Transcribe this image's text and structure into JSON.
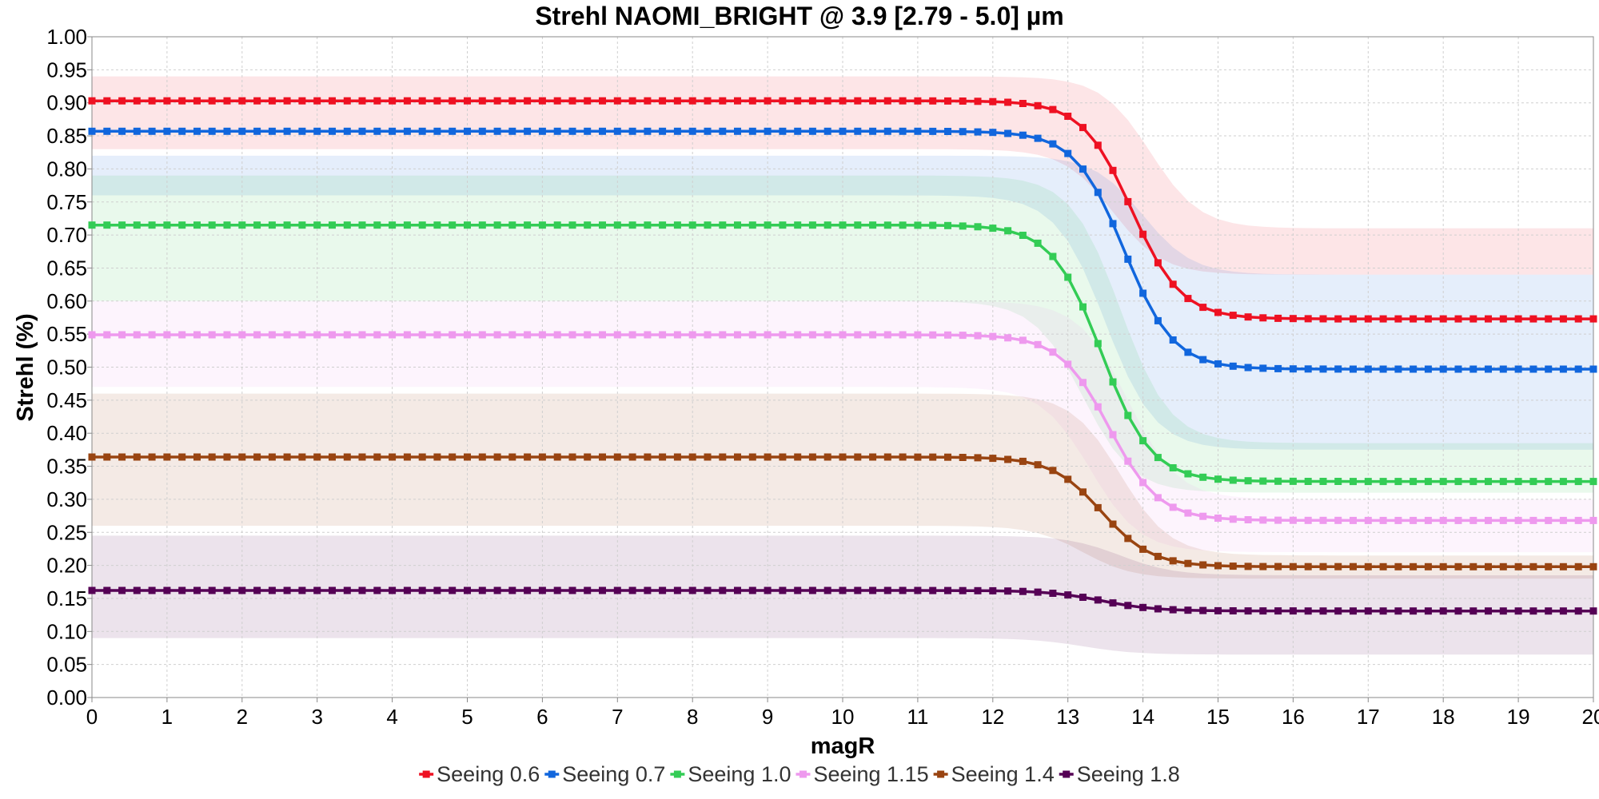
{
  "chart_data": {
    "type": "line",
    "title": "Strehl NAOMI_BRIGHT @ 3.9 [2.79 - 5.0] µm",
    "xlabel": "magR",
    "ylabel": "Strehl (%)",
    "xlim": [
      0,
      20
    ],
    "ylim": [
      0,
      1
    ],
    "x_ticks": [
      "0",
      "1",
      "2",
      "3",
      "4",
      "5",
      "6",
      "7",
      "8",
      "9",
      "10",
      "11",
      "12",
      "13",
      "14",
      "15",
      "16",
      "17",
      "18",
      "19",
      "20"
    ],
    "y_ticks": [
      "0.00",
      "0.05",
      "0.10",
      "0.15",
      "0.20",
      "0.25",
      "0.30",
      "0.35",
      "0.40",
      "0.45",
      "0.50",
      "0.55",
      "0.60",
      "0.65",
      "0.70",
      "0.75",
      "0.80",
      "0.85",
      "0.90",
      "0.95",
      "1.00"
    ],
    "grid": true,
    "legend_position": "bottom-center",
    "x_step": 0.2,
    "series": [
      {
        "name": "Seeing 0.6",
        "color": "#ee1122",
        "plateau": 0.903,
        "floor": 0.573,
        "mid": 13.85,
        "width": 0.33,
        "band_low": [
          0.83,
          0.64
        ],
        "band_high": [
          0.94,
          0.71
        ]
      },
      {
        "name": "Seeing 0.7",
        "color": "#1166dd",
        "plateau": 0.857,
        "floor": 0.497,
        "mid": 13.75,
        "width": 0.33,
        "band_low": [
          0.76,
          0.375
        ],
        "band_high": [
          0.82,
          0.64
        ]
      },
      {
        "name": "Seeing 1.0",
        "color": "#33cc55",
        "plateau": 0.715,
        "floor": 0.327,
        "mid": 13.45,
        "width": 0.33,
        "band_low": [
          0.6,
          0.31
        ],
        "band_high": [
          0.79,
          0.385
        ]
      },
      {
        "name": "Seeing 1.15",
        "color": "#ee99ee",
        "plateau": 0.549,
        "floor": 0.268,
        "mid": 13.55,
        "width": 0.33,
        "band_low": [
          0.47,
          0.22
        ],
        "band_high": [
          0.6,
          0.3
        ]
      },
      {
        "name": "Seeing 1.4",
        "color": "#994411",
        "plateau": 0.364,
        "floor": 0.198,
        "mid": 13.45,
        "width": 0.33,
        "band_low": [
          0.26,
          0.18
        ],
        "band_high": [
          0.46,
          0.215
        ]
      },
      {
        "name": "Seeing 1.8",
        "color": "#550055",
        "plateau": 0.162,
        "floor": 0.131,
        "mid": 13.45,
        "width": 0.35,
        "band_low": [
          0.09,
          0.065
        ],
        "band_high": [
          0.245,
          0.185
        ]
      }
    ]
  }
}
